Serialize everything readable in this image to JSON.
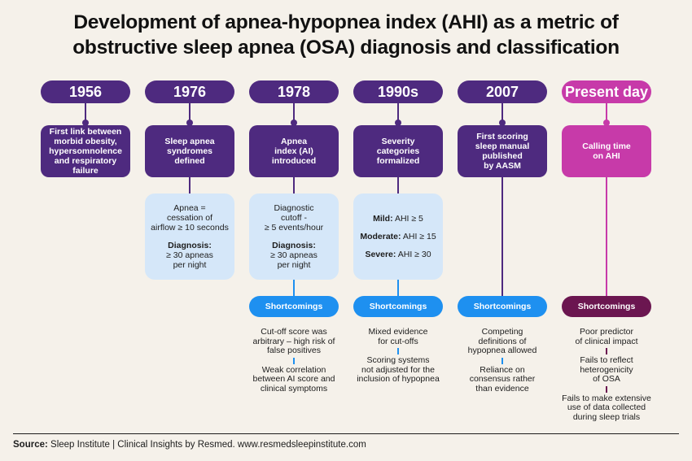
{
  "title_line1": "Development of apnea-hypopnea index (AHI) as a metric of",
  "title_line2": "obstructive sleep apnea (OSA) diagnosis and classification",
  "colors": {
    "purple": "#4e2a7f",
    "magenta": "#c73aa9",
    "maroon": "#6b1650",
    "blue": "#1e90f0",
    "light_blue": "#d5e7f9",
    "background": "#f5f1ea"
  },
  "columns": [
    {
      "year": "1956",
      "event": [
        "First link between",
        "morbid obesity,",
        "hypersomnolence",
        "and respiratory",
        "failure"
      ]
    },
    {
      "year": "1976",
      "event": [
        "Sleep apnea",
        "syndromes",
        "defined"
      ],
      "detail": {
        "top": [
          "Apnea =",
          "cessation of",
          "airflow ≥ 10 seconds"
        ],
        "diag_label": "Diagnosis:",
        "diag": [
          "≥ 30 apneas",
          "per night"
        ]
      }
    },
    {
      "year": "1978",
      "event": [
        "Apnea",
        "index (AI)",
        "introduced"
      ],
      "detail": {
        "top": [
          "Diagnostic",
          "cutoff -",
          "≥ 5 events/hour"
        ],
        "diag_label": "Diagnosis:",
        "diag": [
          "≥ 30 apneas",
          "per night"
        ]
      },
      "shortcomings_label": "Shortcomings",
      "shortcomings": [
        [
          "Cut-off score was",
          "arbitrary – high risk of",
          "false positives"
        ],
        [
          "Weak correlation",
          "between AI score and",
          "clinical symptoms"
        ]
      ]
    },
    {
      "year": "1990s",
      "event": [
        "Severity",
        "categories",
        "formalized"
      ],
      "severity": [
        {
          "label": "Mild:",
          "value": "AHI ≥ 5"
        },
        {
          "label": "Moderate:",
          "value": "AHI ≥ 15"
        },
        {
          "label": "Severe:",
          "value": "AHI ≥ 30"
        }
      ],
      "shortcomings_label": "Shortcomings",
      "shortcomings": [
        [
          "Mixed evidence",
          "for cut-offs"
        ],
        [
          "Scoring systems",
          "not adjusted for the",
          "inclusion of hypopnea"
        ]
      ]
    },
    {
      "year": "2007",
      "event": [
        "First scoring",
        "sleep manual",
        "published",
        "by AASM"
      ],
      "shortcomings_label": "Shortcomings",
      "shortcomings": [
        [
          "Competing",
          "definitions of",
          "hypopnea allowed"
        ],
        [
          "Reliance on",
          "consensus rather",
          "than evidence"
        ]
      ]
    },
    {
      "year": "Present day",
      "event": [
        "Calling time",
        "on AHI"
      ],
      "shortcomings_label": "Shortcomings",
      "shortcomings": [
        [
          "Poor predictor",
          "of clinical impact"
        ],
        [
          "Fails to reflect",
          "heterogenicity",
          "of OSA"
        ],
        [
          "Fails to make extensive",
          "use of data collected",
          "during sleep trials"
        ]
      ]
    }
  ],
  "source_label": "Source:",
  "source_text": " Sleep Institute | Clinical Insights by Resmed. www.resmedsleepinstitute.com"
}
